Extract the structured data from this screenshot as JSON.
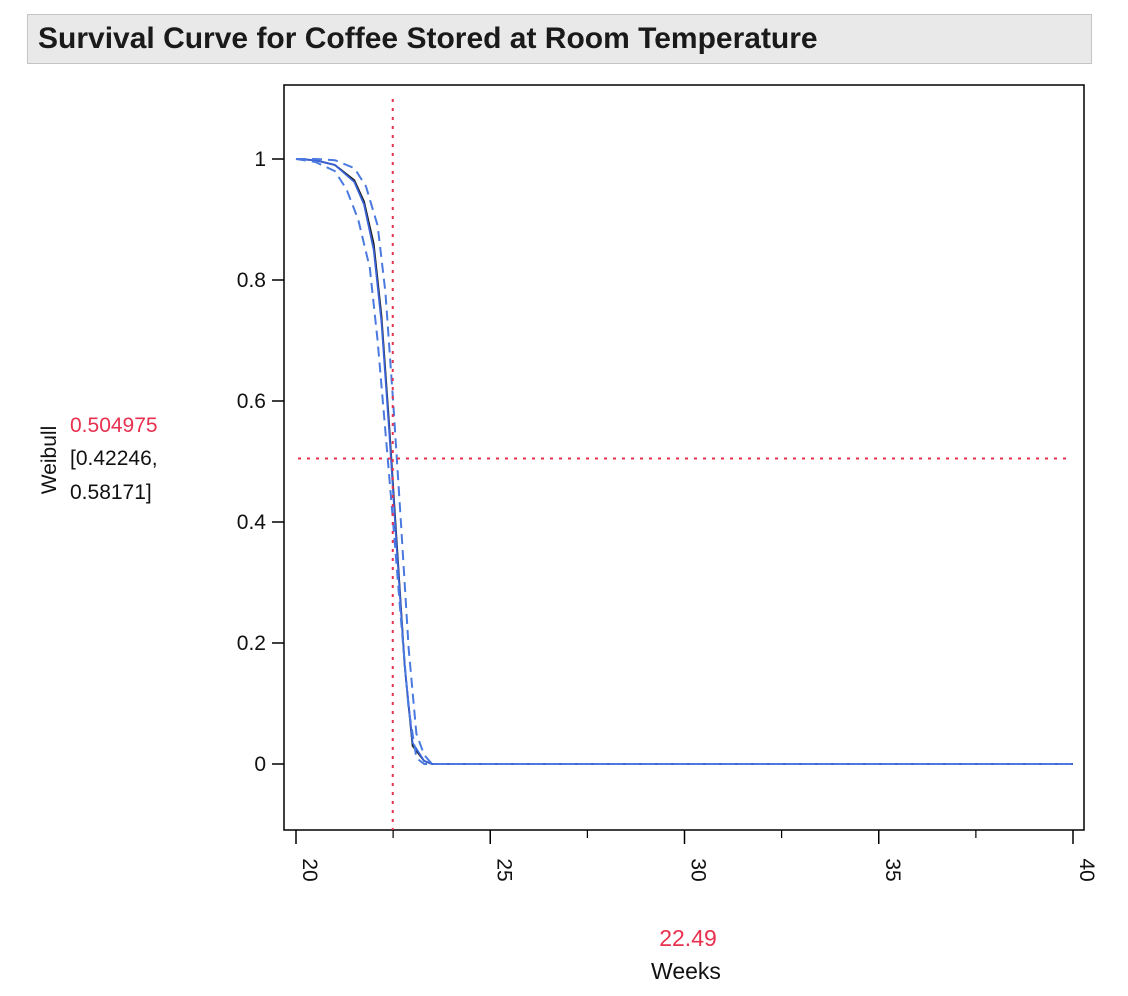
{
  "header": {
    "title": "Survival Curve for Coffee Stored at Room Temperature"
  },
  "chart_data": {
    "type": "line",
    "title": "Survival Curve for Coffee Stored at Room Temperature",
    "xlabel": "Weeks",
    "ylabel": "Weibull",
    "xlim": [
      20,
      40
    ],
    "ylim": [
      -0.11,
      1.11
    ],
    "x_ticks": [
      20,
      25,
      30,
      35,
      40
    ],
    "x_minor_ticks": [
      22.5,
      27.5,
      32.5,
      37.5
    ],
    "y_ticks": [
      0,
      0.2,
      0.4,
      0.6,
      0.8,
      1
    ],
    "y_tick_labels": [
      "0",
      "0.2",
      "0.4",
      "0.6",
      "0.8",
      "1"
    ],
    "grid": false,
    "series": [
      {
        "style": "solid",
        "color": "#1f1f1f",
        "x": [
          20,
          20.5,
          21,
          21.5,
          21.75,
          22,
          22.2,
          22.4,
          22.6,
          22.8,
          23,
          23.3,
          23.5,
          25,
          30,
          35,
          40
        ],
        "y": [
          1,
          0.998,
          0.99,
          0.965,
          0.93,
          0.86,
          0.74,
          0.56,
          0.36,
          0.16,
          0.03,
          0.005,
          0,
          0,
          0,
          0,
          0
        ]
      },
      {
        "style": "solid",
        "color": "#3a63d8",
        "x": [
          20,
          20.5,
          21,
          21.5,
          21.75,
          22,
          22.2,
          22.4,
          22.6,
          22.8,
          23,
          23.3,
          23.5,
          25,
          30,
          35,
          40
        ],
        "y": [
          1,
          0.998,
          0.99,
          0.962,
          0.925,
          0.85,
          0.73,
          0.55,
          0.35,
          0.16,
          0.035,
          0.005,
          0,
          0,
          0,
          0,
          0
        ]
      },
      {
        "style": "dashed",
        "color": "#4a7ae0",
        "x": [
          20,
          20.5,
          21,
          21.3,
          21.6,
          21.9,
          22.1,
          22.3,
          22.5,
          22.7,
          22.9,
          23.1,
          23.3,
          23.5,
          25,
          30,
          35,
          40
        ],
        "y": [
          1,
          0.995,
          0.98,
          0.95,
          0.9,
          0.82,
          0.7,
          0.55,
          0.4,
          0.24,
          0.09,
          0.01,
          0.0,
          0.0,
          0,
          0,
          0,
          0
        ]
      },
      {
        "style": "dashed",
        "color": "#4a7ae0",
        "x": [
          20,
          20.5,
          21,
          21.5,
          21.8,
          22.1,
          22.3,
          22.5,
          22.7,
          22.9,
          23.1,
          23.3,
          23.5,
          25,
          30,
          35,
          40
        ],
        "y": [
          1,
          1,
          0.998,
          0.985,
          0.955,
          0.89,
          0.78,
          0.6,
          0.4,
          0.19,
          0.05,
          0.015,
          0,
          0,
          0,
          0,
          0
        ]
      }
    ],
    "crosshair": {
      "x": 22.49,
      "y": 0.504975,
      "color": "#e8304f",
      "x_readout": "22.49",
      "y_readout": "0.504975",
      "ci_readout_line1": "[0.42246,",
      "ci_readout_line2": "0.58171]"
    }
  }
}
